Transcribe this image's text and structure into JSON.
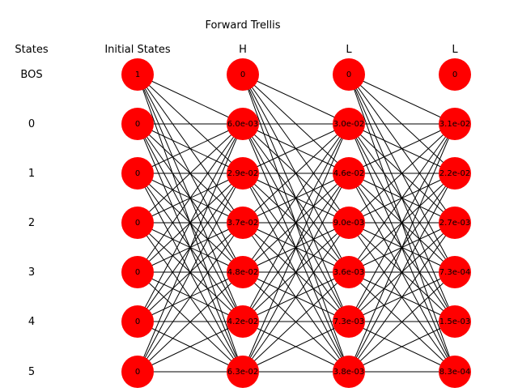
{
  "title": "Forward Trellis",
  "states_header": "States",
  "columns": [
    "Initial States",
    "H",
    "L",
    "L"
  ],
  "row_labels": [
    "BOS",
    "0",
    "1",
    "2",
    "3",
    "4",
    "5"
  ],
  "node_values": [
    [
      "1",
      "0",
      "0",
      "0",
      "0",
      "0",
      "0"
    ],
    [
      "0",
      "6.0e-03",
      "2.9e-02",
      "3.7e-02",
      "4.8e-02",
      "4.2e-02",
      "6.3e-02"
    ],
    [
      "0",
      "3.0e-02",
      "4.6e-02",
      "9.0e-03",
      "3.6e-03",
      "7.3e-03",
      "3.8e-03"
    ],
    [
      "0",
      "3.1e-02",
      "2.2e-02",
      "2.7e-03",
      "7.3e-04",
      "1.5e-03",
      "8.3e-04"
    ]
  ],
  "colors": {
    "node_fill": "#ff0000",
    "edge": "#000000"
  }
}
